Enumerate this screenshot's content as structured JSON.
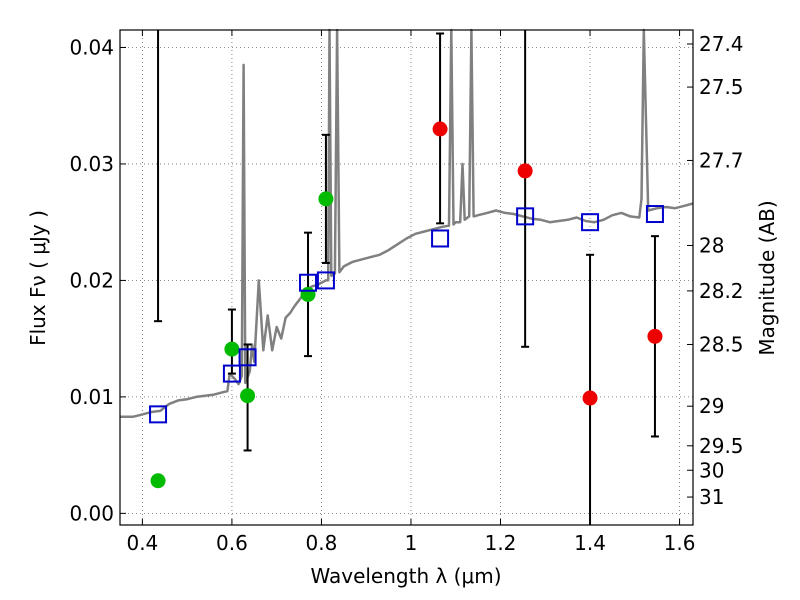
{
  "chart_data": {
    "type": "scatter",
    "title": "",
    "xlabel": "Wavelength  λ (μm)",
    "ylabel": "Flux  Fν  ( μJy )",
    "y2label": "Magnitude (AB)",
    "xlim": [
      0.35,
      1.63
    ],
    "ylim": [
      -0.001,
      0.0415
    ],
    "grid": true,
    "x_ticks": [
      0.4,
      0.6,
      0.8,
      1.0,
      1.2,
      1.4,
      1.6
    ],
    "x_tick_labels": [
      "0.4",
      "0.6",
      "0.8",
      "1",
      "1.2",
      "1.4",
      "1.6"
    ],
    "y_ticks": [
      0.0,
      0.01,
      0.02,
      0.03,
      0.04
    ],
    "y_tick_labels": [
      "0.00",
      "0.01",
      "0.02",
      "0.03",
      "0.04"
    ],
    "mag_ticks": [
      {
        "label": "27.4",
        "flux": 0.0403
      },
      {
        "label": "27.5",
        "flux": 0.0366
      },
      {
        "label": "27.7",
        "flux": 0.0303
      },
      {
        "label": "28",
        "flux": 0.023
      },
      {
        "label": "28.2",
        "flux": 0.0191
      },
      {
        "label": "28.5",
        "flux": 0.0145
      },
      {
        "label": "29",
        "flux": 0.0092
      },
      {
        "label": "29.5",
        "flux": 0.0058
      },
      {
        "label": "30",
        "flux": 0.0037
      },
      {
        "label": "31",
        "flux": 0.0014
      }
    ],
    "colors": {
      "spectrum": "#808080",
      "green_points": "#00bb00",
      "red_points": "#ee0000",
      "squares": "#0000cc",
      "errorbars": "#000000",
      "grid": "#000000"
    },
    "series": [
      {
        "name": "Model spectrum",
        "kind": "line",
        "points": [
          [
            0.35,
            0.0083
          ],
          [
            0.38,
            0.0083
          ],
          [
            0.4,
            0.0085
          ],
          [
            0.42,
            0.0087
          ],
          [
            0.44,
            0.0088
          ],
          [
            0.46,
            0.0094
          ],
          [
            0.48,
            0.0097
          ],
          [
            0.5,
            0.0098
          ],
          [
            0.52,
            0.01
          ],
          [
            0.54,
            0.0101
          ],
          [
            0.56,
            0.0102
          ],
          [
            0.58,
            0.0104
          ],
          [
            0.59,
            0.0105
          ],
          [
            0.595,
            0.012
          ],
          [
            0.605,
            0.0116
          ],
          [
            0.615,
            0.0111
          ],
          [
            0.622,
            0.0118
          ],
          [
            0.626,
            0.0385
          ],
          [
            0.63,
            0.0112
          ],
          [
            0.64,
            0.0122
          ],
          [
            0.645,
            0.0145
          ],
          [
            0.65,
            0.013
          ],
          [
            0.66,
            0.02
          ],
          [
            0.67,
            0.014
          ],
          [
            0.68,
            0.017
          ],
          [
            0.69,
            0.014
          ],
          [
            0.7,
            0.016
          ],
          [
            0.71,
            0.015
          ],
          [
            0.72,
            0.0168
          ],
          [
            0.73,
            0.0172
          ],
          [
            0.74,
            0.0178
          ],
          [
            0.75,
            0.0183
          ],
          [
            0.76,
            0.0188
          ],
          [
            0.77,
            0.0193
          ],
          [
            0.78,
            0.0195
          ],
          [
            0.79,
            0.0196
          ],
          [
            0.8,
            0.0198
          ],
          [
            0.81,
            0.02
          ],
          [
            0.815,
            0.02
          ],
          [
            0.818,
            0.0415
          ],
          [
            0.822,
            0.0204
          ],
          [
            0.83,
            0.0206
          ],
          [
            0.835,
            0.0415
          ],
          [
            0.84,
            0.0207
          ],
          [
            0.85,
            0.0212
          ],
          [
            0.87,
            0.0216
          ],
          [
            0.89,
            0.0218
          ],
          [
            0.91,
            0.022
          ],
          [
            0.93,
            0.0222
          ],
          [
            0.95,
            0.0226
          ],
          [
            0.97,
            0.0231
          ],
          [
            0.99,
            0.0236
          ],
          [
            1.01,
            0.024
          ],
          [
            1.03,
            0.0242
          ],
          [
            1.05,
            0.0244
          ],
          [
            1.07,
            0.0246
          ],
          [
            1.085,
            0.0247
          ],
          [
            1.09,
            0.0415
          ],
          [
            1.095,
            0.0248
          ],
          [
            1.1,
            0.025
          ],
          [
            1.11,
            0.025
          ],
          [
            1.115,
            0.03
          ],
          [
            1.12,
            0.0252
          ],
          [
            1.13,
            0.0255
          ],
          [
            1.135,
            0.0415
          ],
          [
            1.14,
            0.0255
          ],
          [
            1.15,
            0.0256
          ],
          [
            1.17,
            0.0258
          ],
          [
            1.19,
            0.026
          ],
          [
            1.21,
            0.0258
          ],
          [
            1.23,
            0.0257
          ],
          [
            1.25,
            0.0255
          ],
          [
            1.27,
            0.0253
          ],
          [
            1.29,
            0.0252
          ],
          [
            1.31,
            0.025
          ],
          [
            1.33,
            0.0251
          ],
          [
            1.35,
            0.0252
          ],
          [
            1.37,
            0.0254
          ],
          [
            1.39,
            0.0251
          ],
          [
            1.41,
            0.025
          ],
          [
            1.43,
            0.0252
          ],
          [
            1.45,
            0.0256
          ],
          [
            1.47,
            0.0258
          ],
          [
            1.49,
            0.0255
          ],
          [
            1.51,
            0.0254
          ],
          [
            1.515,
            0.027
          ],
          [
            1.52,
            0.0415
          ],
          [
            1.53,
            0.026
          ],
          [
            1.55,
            0.0262
          ],
          [
            1.57,
            0.0263
          ],
          [
            1.59,
            0.0262
          ],
          [
            1.61,
            0.0264
          ],
          [
            1.63,
            0.0266
          ]
        ]
      },
      {
        "name": "Green photometry",
        "kind": "points",
        "points": [
          {
            "x": 0.435,
            "y": 0.0028,
            "err_lo": 0.0165,
            "err_hi": null
          },
          {
            "x": 0.6,
            "y": 0.0141,
            "err_lo": 0.012,
            "err_hi": 0.0175
          },
          {
            "x": 0.635,
            "y": 0.0101,
            "err_lo": 0.0054,
            "err_hi": 0.0145
          },
          {
            "x": 0.77,
            "y": 0.0188,
            "err_lo": 0.0135,
            "err_hi": 0.0241
          },
          {
            "x": 0.81,
            "y": 0.027,
            "err_lo": 0.0215,
            "err_hi": 0.0325
          }
        ]
      },
      {
        "name": "Red photometry",
        "kind": "points",
        "points": [
          {
            "x": 1.065,
            "y": 0.033,
            "err_lo": 0.0249,
            "err_hi": 0.0412
          },
          {
            "x": 1.255,
            "y": 0.0294,
            "err_lo": 0.0143,
            "err_hi": 0.0445
          },
          {
            "x": 1.4,
            "y": 0.0099,
            "err_lo": -0.0025,
            "err_hi": 0.0222
          },
          {
            "x": 1.545,
            "y": 0.0152,
            "err_lo": 0.0066,
            "err_hi": 0.0238
          }
        ]
      },
      {
        "name": "Model band fluxes",
        "kind": "squares",
        "points": [
          [
            0.435,
            0.0085
          ],
          [
            0.6,
            0.012
          ],
          [
            0.635,
            0.0134
          ],
          [
            0.77,
            0.0198
          ],
          [
            0.81,
            0.02
          ],
          [
            1.065,
            0.0236
          ],
          [
            1.255,
            0.0255
          ],
          [
            1.4,
            0.025
          ],
          [
            1.545,
            0.0257
          ]
        ]
      }
    ]
  }
}
